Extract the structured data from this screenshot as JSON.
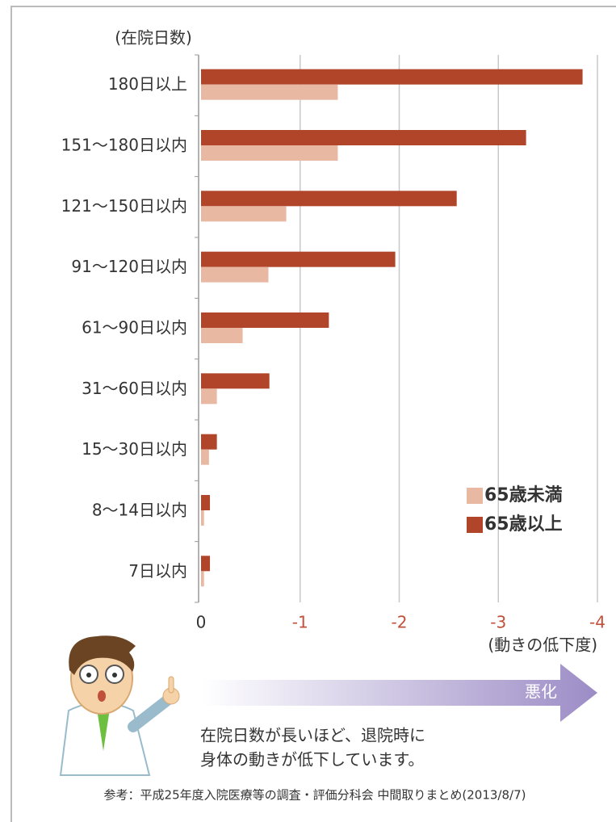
{
  "chart_data": {
    "type": "bar",
    "orientation": "horizontal",
    "y_label": "(在院日数)",
    "x_label": "(動きの低下度)",
    "categories": [
      "180日以上",
      "151〜180日以内",
      "121〜150日以内",
      "91〜120日以内",
      "61〜90日以内",
      "31〜60日以内",
      "15〜30日以内",
      "8〜14日以内",
      "7日以内"
    ],
    "series": [
      {
        "name": "65歳未満",
        "color": "#e9b8a3",
        "values": [
          -1.38,
          -1.38,
          -0.86,
          -0.68,
          -0.42,
          -0.16,
          -0.08,
          -0.03,
          -0.03
        ]
      },
      {
        "name": "65歳以上",
        "color": "#b0452a",
        "values": [
          -3.85,
          -3.28,
          -2.58,
          -1.96,
          -1.29,
          -0.69,
          -0.16,
          -0.09,
          -0.09
        ]
      }
    ],
    "xlim": [
      0,
      -4
    ],
    "xticks": [
      0,
      -1,
      -2,
      -3,
      -4
    ],
    "grid": true,
    "arrow_label": "悪化",
    "caption": [
      "在院日数が長いほど、退院時に",
      "身体の動きが低下しています。"
    ],
    "source": "参考：平成25年度入院医療等の調査・評価分科会 中間取りまとめ(2013/8/7)"
  }
}
